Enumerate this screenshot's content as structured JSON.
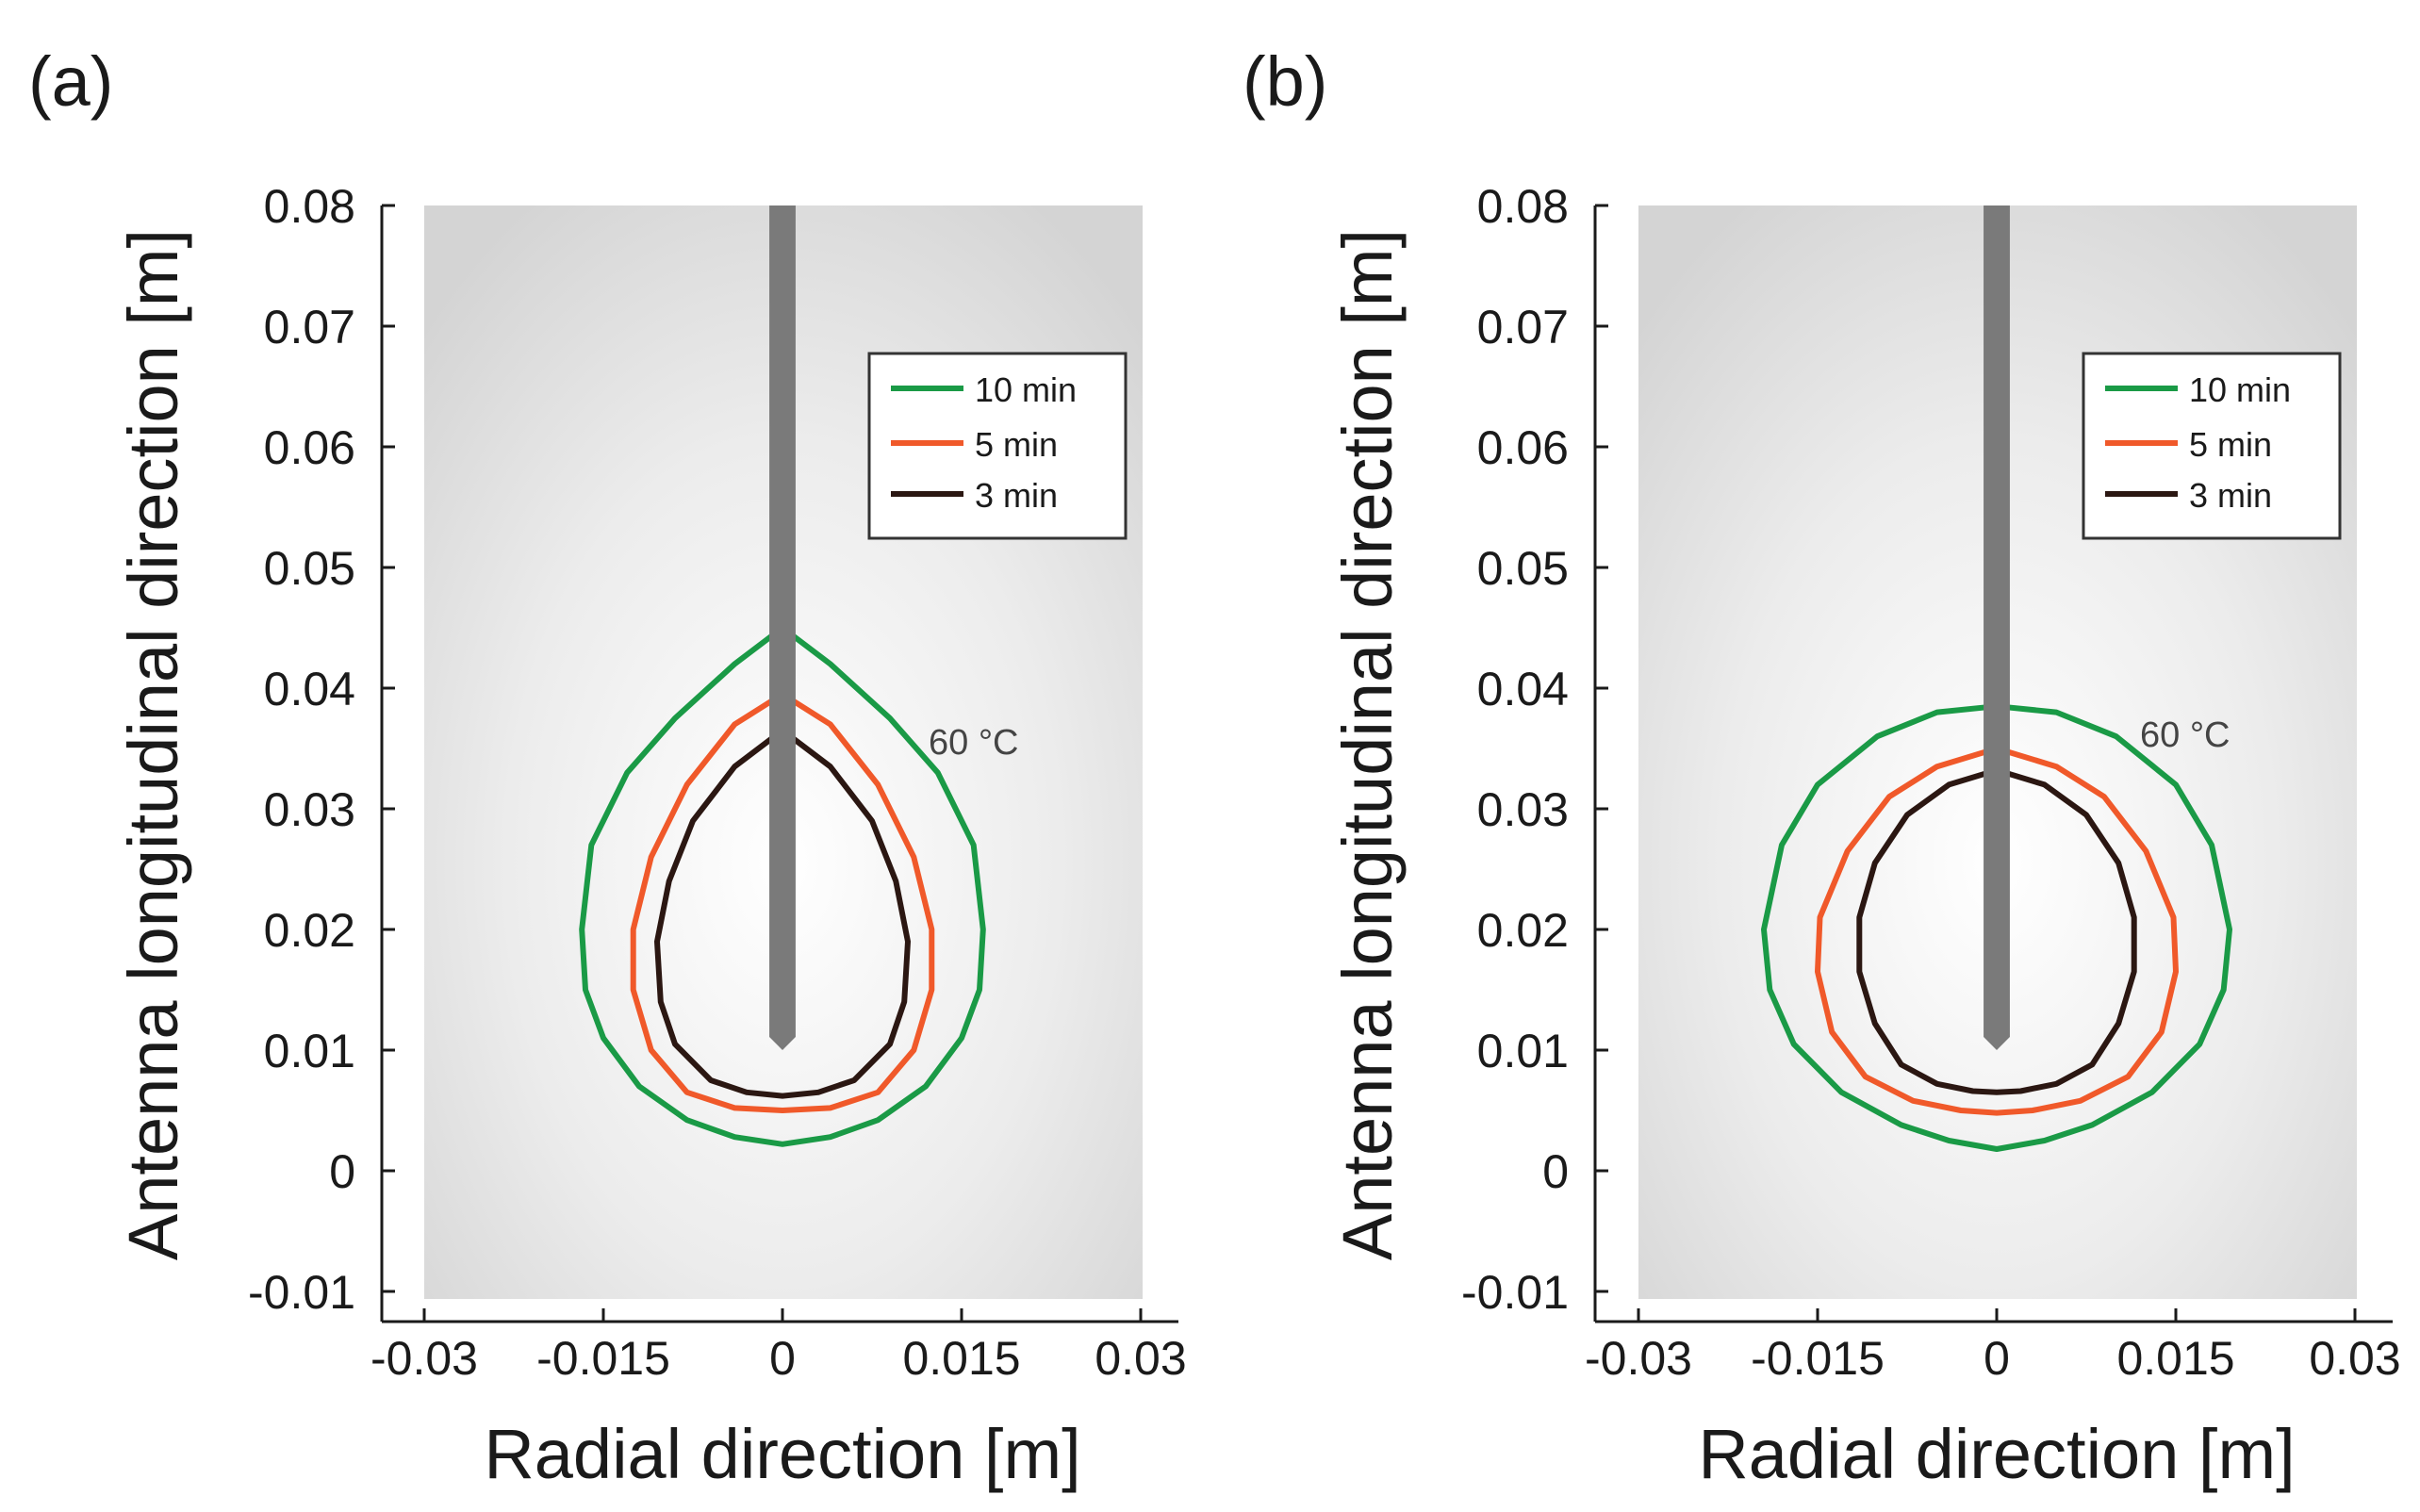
{
  "chart_data": [
    {
      "type": "line",
      "panel_label": "(a)",
      "xlabel": "Radial direction [m]",
      "ylabel": "Antenna longitudinal direction [m]",
      "xlim": [
        -0.03,
        0.03
      ],
      "ylim": [
        -0.01,
        0.08
      ],
      "x_ticks": [
        -0.03,
        -0.015,
        0,
        0.015,
        0.03
      ],
      "x_tick_labels": [
        "-0.03",
        "-0.015",
        "0",
        "0.015",
        "0.03"
      ],
      "y_ticks": [
        -0.01,
        0,
        0.01,
        0.02,
        0.03,
        0.04,
        0.05,
        0.06,
        0.07,
        0.08
      ],
      "y_tick_labels": [
        "-0.01",
        "0",
        "0.01",
        "0.02",
        "0.03",
        "0.04",
        "0.05",
        "0.06",
        "0.07",
        "0.08"
      ],
      "annotation": "60 °C",
      "antenna": {
        "x_half_width": 0.0011,
        "y_top": 0.08,
        "y_tip": 0.01
      },
      "series": [
        {
          "name": "10 min",
          "color": "#1a9a46",
          "x": [
            0,
            0.004,
            0.009,
            0.013,
            0.016,
            0.0168,
            0.0165,
            0.015,
            0.012,
            0.008,
            0.004,
            0,
            -0.004,
            -0.008,
            -0.012,
            -0.015,
            -0.0165,
            -0.0168,
            -0.016,
            -0.013,
            -0.009,
            -0.004,
            0
          ],
          "y": [
            0.045,
            0.042,
            0.0375,
            0.033,
            0.027,
            0.02,
            0.015,
            0.011,
            0.007,
            0.0042,
            0.0028,
            0.0022,
            0.0028,
            0.0042,
            0.007,
            0.011,
            0.015,
            0.02,
            0.027,
            0.033,
            0.0375,
            0.042,
            0.045
          ]
        },
        {
          "name": "5 min",
          "color": "#f0592a",
          "x": [
            0,
            0.004,
            0.008,
            0.011,
            0.0125,
            0.0125,
            0.011,
            0.008,
            0.004,
            0,
            -0.004,
            -0.008,
            -0.011,
            -0.0125,
            -0.0125,
            -0.011,
            -0.008,
            -0.004,
            0
          ],
          "y": [
            0.0395,
            0.037,
            0.032,
            0.026,
            0.02,
            0.015,
            0.01,
            0.0065,
            0.0052,
            0.005,
            0.0052,
            0.0065,
            0.01,
            0.015,
            0.02,
            0.026,
            0.032,
            0.037,
            0.0395
          ]
        },
        {
          "name": "3 min",
          "color": "#2b1712",
          "x": [
            0,
            0.004,
            0.0075,
            0.0095,
            0.0105,
            0.0102,
            0.009,
            0.006,
            0.003,
            0,
            -0.003,
            -0.006,
            -0.009,
            -0.0102,
            -0.0105,
            -0.0095,
            -0.0075,
            -0.004,
            0
          ],
          "y": [
            0.0365,
            0.0335,
            0.029,
            0.024,
            0.019,
            0.014,
            0.0105,
            0.0075,
            0.0065,
            0.0062,
            0.0065,
            0.0075,
            0.0105,
            0.014,
            0.019,
            0.024,
            0.029,
            0.0335,
            0.0365
          ]
        }
      ]
    },
    {
      "type": "line",
      "panel_label": "(b)",
      "xlabel": "Radial direction [m]",
      "ylabel": "Antenna longitudinal direction [m]",
      "xlim": [
        -0.03,
        0.03
      ],
      "ylim": [
        -0.01,
        0.08
      ],
      "x_ticks": [
        -0.03,
        -0.015,
        0,
        0.015,
        0.03
      ],
      "x_tick_labels": [
        "-0.03",
        "-0.015",
        "0",
        "0.015",
        "0.03"
      ],
      "y_ticks": [
        -0.01,
        0,
        0.01,
        0.02,
        0.03,
        0.04,
        0.05,
        0.06,
        0.07,
        0.08
      ],
      "y_tick_labels": [
        "-0.01",
        "0",
        "0.01",
        "0.02",
        "0.03",
        "0.04",
        "0.05",
        "0.06",
        "0.07",
        "0.08"
      ],
      "annotation": "60 °C",
      "antenna": {
        "x_half_width": 0.0011,
        "y_top": 0.08,
        "y_tip": 0.01
      },
      "series": [
        {
          "name": "10 min",
          "color": "#1a9a46",
          "x": [
            0,
            0.005,
            0.01,
            0.015,
            0.018,
            0.0195,
            0.019,
            0.017,
            0.013,
            0.008,
            0.004,
            0,
            -0.004,
            -0.008,
            -0.013,
            -0.017,
            -0.019,
            -0.0195,
            -0.018,
            -0.015,
            -0.01,
            -0.005,
            0
          ],
          "y": [
            0.0385,
            0.038,
            0.036,
            0.032,
            0.027,
            0.02,
            0.015,
            0.0105,
            0.0065,
            0.0038,
            0.0025,
            0.0018,
            0.0025,
            0.0038,
            0.0065,
            0.0105,
            0.015,
            0.02,
            0.027,
            0.032,
            0.036,
            0.038,
            0.0385
          ]
        },
        {
          "name": "5 min",
          "color": "#f0592a",
          "x": [
            0,
            0.005,
            0.009,
            0.0125,
            0.0148,
            0.015,
            0.0138,
            0.011,
            0.007,
            0.003,
            0,
            -0.003,
            -0.007,
            -0.011,
            -0.0138,
            -0.015,
            -0.0148,
            -0.0125,
            -0.009,
            -0.005,
            0
          ],
          "y": [
            0.035,
            0.0335,
            0.031,
            0.0265,
            0.021,
            0.0165,
            0.0115,
            0.0078,
            0.0058,
            0.005,
            0.0048,
            0.005,
            0.0058,
            0.0078,
            0.0115,
            0.0165,
            0.021,
            0.0265,
            0.031,
            0.0335,
            0.035
          ]
        },
        {
          "name": "3 min",
          "color": "#2b1712",
          "x": [
            0,
            0.004,
            0.0075,
            0.0102,
            0.0115,
            0.0115,
            0.0102,
            0.008,
            0.005,
            0.002,
            0,
            -0.002,
            -0.005,
            -0.008,
            -0.0102,
            -0.0115,
            -0.0115,
            -0.0102,
            -0.0075,
            -0.004,
            0
          ],
          "y": [
            0.0332,
            0.032,
            0.0295,
            0.0255,
            0.021,
            0.0165,
            0.0122,
            0.0088,
            0.0072,
            0.0066,
            0.0065,
            0.0066,
            0.0072,
            0.0088,
            0.0122,
            0.0165,
            0.021,
            0.0255,
            0.0295,
            0.032,
            0.0332
          ]
        }
      ]
    }
  ]
}
